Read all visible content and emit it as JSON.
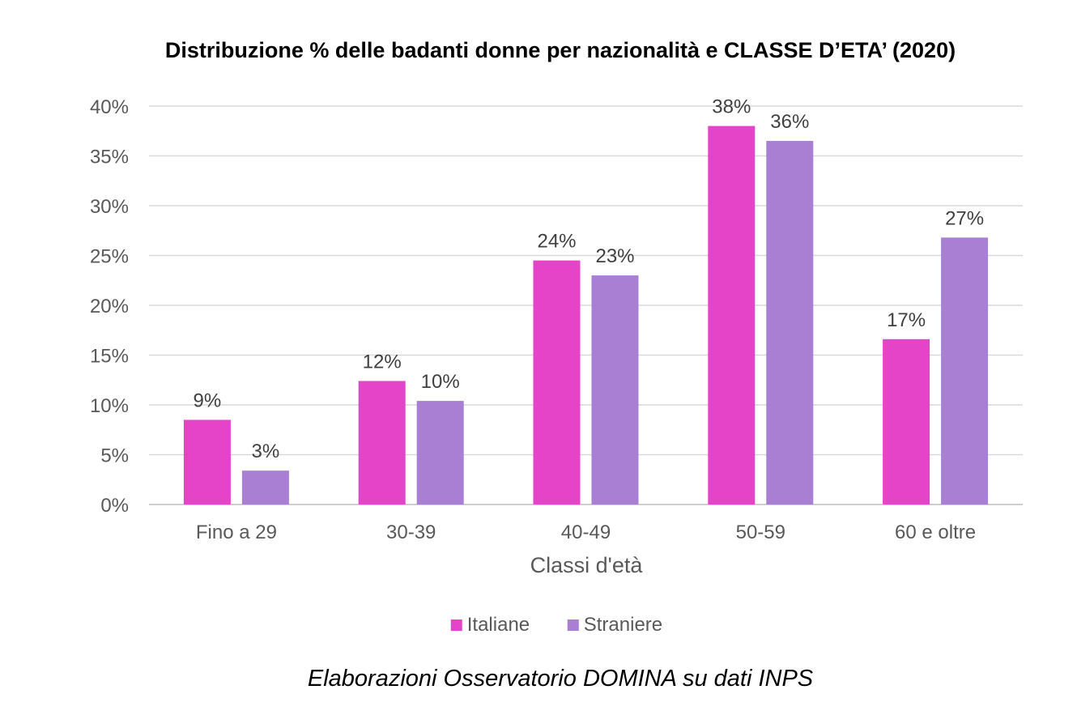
{
  "chart_data": {
    "type": "bar",
    "title": "Distribuzione % delle badanti donne per nazionalità e CLASSE D’ETA’ (2020)",
    "xlabel": "Classi d'età",
    "ylabel": "",
    "categories": [
      "Fino a 29",
      "30-39",
      "40-49",
      "50-59",
      "60 e oltre"
    ],
    "series": [
      {
        "name": "Italiane",
        "color": "#e543c8",
        "values": [
          8.5,
          12.4,
          24.5,
          38.0,
          16.6
        ],
        "labels": [
          "9%",
          "12%",
          "24%",
          "38%",
          "17%"
        ]
      },
      {
        "name": "Straniere",
        "color": "#a97fd4",
        "values": [
          3.4,
          10.4,
          23.0,
          36.5,
          26.8
        ],
        "labels": [
          "3%",
          "10%",
          "23%",
          "36%",
          "27%"
        ]
      }
    ],
    "ylim": [
      0,
      40
    ],
    "yticks": [
      0,
      5,
      10,
      15,
      20,
      25,
      30,
      35,
      40
    ],
    "ytick_labels": [
      "0%",
      "5%",
      "10%",
      "15%",
      "20%",
      "25%",
      "30%",
      "35%",
      "40%"
    ],
    "grid": true,
    "legend_position": "bottom-center"
  },
  "source": "Elaborazioni Osservatorio DOMINA su dati INPS"
}
